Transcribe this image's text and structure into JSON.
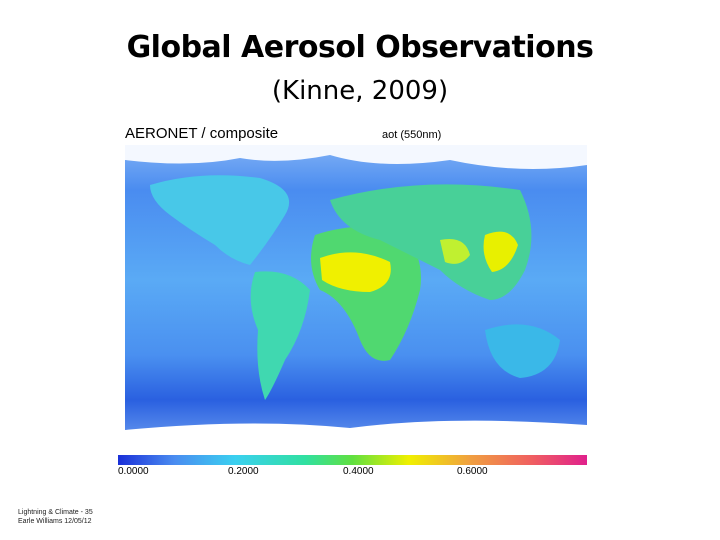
{
  "title": "Global Aerosol Observations",
  "subtitle": "(Kinne, 2009)",
  "map": {
    "header_left": "AERONET / composite",
    "header_right": "aot (550nm)",
    "colorbar_labels": [
      "0.0000",
      "0.2000",
      "0.4000",
      "0.6000"
    ]
  },
  "footer": {
    "line1": "Lightning & Climate - 35",
    "line2": "Earle Williams 12/05/12"
  }
}
